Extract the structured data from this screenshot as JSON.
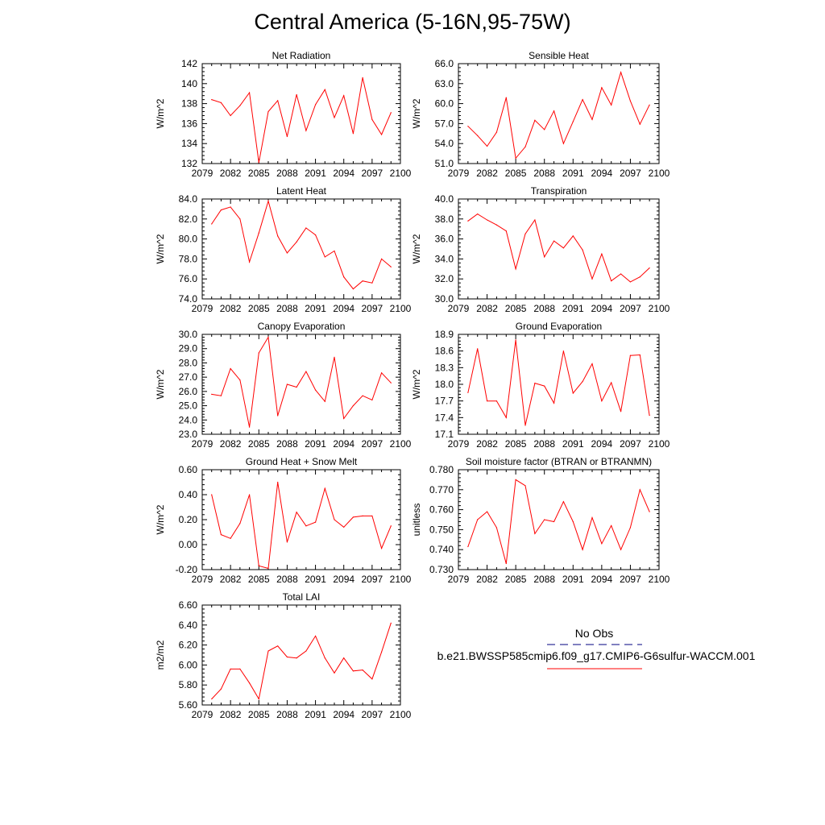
{
  "title": "Central America (5-16N,95-75W)",
  "colors": {
    "model_line": "#ff0000",
    "obs_line": "#000080",
    "axis": "#000000"
  },
  "legend": {
    "obs_label": "No Obs",
    "model_label": "b.e21.BWSSP585cmip6.f09_g17.CMIP6-G6sulfur-WACCM.001"
  },
  "chart_data": [
    {
      "type": "line",
      "title": "Net Radiation",
      "ylabel": "W/m^2",
      "xlim": [
        2079,
        2100
      ],
      "xticks": [
        "2079",
        "2082",
        "2085",
        "2088",
        "2091",
        "2094",
        "2097",
        "2100"
      ],
      "ylim": [
        132,
        142
      ],
      "yticks": [
        "132",
        "134",
        "136",
        "138",
        "140",
        "142"
      ],
      "series": [
        {
          "x": [
            2080,
            2081,
            2082,
            2083,
            2084,
            2085,
            2086,
            2087,
            2088,
            2089,
            2090,
            2091,
            2092,
            2093,
            2094,
            2095,
            2096,
            2097,
            2098,
            2099
          ],
          "values": [
            138.4,
            138.1,
            136.8,
            137.8,
            139.1,
            132.1,
            137.2,
            138.3,
            134.7,
            138.9,
            135.3,
            137.9,
            139.4,
            136.6,
            138.8,
            135.0,
            140.6,
            136.4,
            134.9,
            137.1
          ]
        }
      ]
    },
    {
      "type": "line",
      "title": "Sensible Heat",
      "ylabel": "W/m^2",
      "xlim": [
        2079,
        2100
      ],
      "xticks": [
        "2079",
        "2082",
        "2085",
        "2088",
        "2091",
        "2094",
        "2097",
        "2100"
      ],
      "ylim": [
        51,
        66
      ],
      "yticks": [
        "51.0",
        "54.0",
        "57.0",
        "60.0",
        "63.0",
        "66.0"
      ],
      "series": [
        {
          "x": [
            2080,
            2081,
            2082,
            2083,
            2084,
            2085,
            2086,
            2087,
            2088,
            2089,
            2090,
            2091,
            2092,
            2093,
            2094,
            2095,
            2096,
            2097,
            2098,
            2099
          ],
          "values": [
            56.6,
            55.2,
            53.6,
            55.7,
            60.9,
            51.8,
            53.5,
            57.5,
            56.1,
            58.9,
            54.0,
            57.3,
            60.6,
            57.6,
            62.4,
            59.8,
            64.7,
            60.4,
            56.9,
            59.8
          ]
        }
      ]
    },
    {
      "type": "line",
      "title": "Latent Heat",
      "ylabel": "W/m^2",
      "xlim": [
        2079,
        2100
      ],
      "xticks": [
        "2079",
        "2082",
        "2085",
        "2088",
        "2091",
        "2094",
        "2097",
        "2100"
      ],
      "ylim": [
        74,
        84
      ],
      "yticks": [
        "74.0",
        "76.0",
        "78.0",
        "80.0",
        "82.0",
        "84.0"
      ],
      "series": [
        {
          "x": [
            2080,
            2081,
            2082,
            2083,
            2084,
            2085,
            2086,
            2087,
            2088,
            2089,
            2090,
            2091,
            2092,
            2093,
            2094,
            2095,
            2096,
            2097,
            2098,
            2099
          ],
          "values": [
            81.5,
            82.9,
            83.2,
            82.0,
            77.7,
            80.6,
            83.8,
            80.3,
            78.6,
            79.7,
            81.1,
            80.4,
            78.2,
            78.8,
            76.2,
            75.0,
            75.8,
            75.6,
            78.0,
            77.2
          ]
        }
      ]
    },
    {
      "type": "line",
      "title": "Transpiration",
      "ylabel": "W/m^2",
      "xlim": [
        2079,
        2100
      ],
      "xticks": [
        "2079",
        "2082",
        "2085",
        "2088",
        "2091",
        "2094",
        "2097",
        "2100"
      ],
      "ylim": [
        30,
        40
      ],
      "yticks": [
        "30.0",
        "32.0",
        "34.0",
        "36.0",
        "38.0",
        "40.0"
      ],
      "series": [
        {
          "x": [
            2080,
            2081,
            2082,
            2083,
            2084,
            2085,
            2086,
            2087,
            2088,
            2089,
            2090,
            2091,
            2092,
            2093,
            2094,
            2095,
            2096,
            2097,
            2098,
            2099
          ],
          "values": [
            37.8,
            38.5,
            37.9,
            37.4,
            36.8,
            33.0,
            36.5,
            37.9,
            34.2,
            35.8,
            35.1,
            36.3,
            34.9,
            32.0,
            34.5,
            31.8,
            32.5,
            31.7,
            32.2,
            33.1
          ]
        }
      ]
    },
    {
      "type": "line",
      "title": "Canopy Evaporation",
      "ylabel": "W/m^2",
      "xlim": [
        2079,
        2100
      ],
      "xticks": [
        "2079",
        "2082",
        "2085",
        "2088",
        "2091",
        "2094",
        "2097",
        "2100"
      ],
      "ylim": [
        23,
        30
      ],
      "yticks": [
        "23.0",
        "24.0",
        "25.0",
        "26.0",
        "27.0",
        "28.0",
        "29.0",
        "30.0"
      ],
      "series": [
        {
          "x": [
            2080,
            2081,
            2082,
            2083,
            2084,
            2085,
            2086,
            2087,
            2088,
            2089,
            2090,
            2091,
            2092,
            2093,
            2094,
            2095,
            2096,
            2097,
            2098,
            2099
          ],
          "values": [
            25.8,
            25.7,
            27.6,
            26.8,
            23.5,
            28.7,
            29.8,
            24.3,
            26.5,
            26.3,
            27.4,
            26.1,
            25.3,
            28.4,
            24.1,
            25.0,
            25.7,
            25.4,
            27.3,
            26.6
          ]
        }
      ]
    },
    {
      "type": "line",
      "title": "Ground Evaporation",
      "ylabel": "W/m^2",
      "xlim": [
        2079,
        2100
      ],
      "xticks": [
        "2079",
        "2082",
        "2085",
        "2088",
        "2091",
        "2094",
        "2097",
        "2100"
      ],
      "ylim": [
        17.1,
        18.9
      ],
      "yticks": [
        "17.1",
        "17.4",
        "17.7",
        "18.0",
        "18.3",
        "18.6",
        "18.9"
      ],
      "series": [
        {
          "x": [
            2080,
            2081,
            2082,
            2083,
            2084,
            2085,
            2086,
            2087,
            2088,
            2089,
            2090,
            2091,
            2092,
            2093,
            2094,
            2095,
            2096,
            2097,
            2098,
            2099
          ],
          "values": [
            17.85,
            18.64,
            17.7,
            17.7,
            17.4,
            18.8,
            17.26,
            18.02,
            17.97,
            17.66,
            18.6,
            17.84,
            18.05,
            18.37,
            17.7,
            18.03,
            17.51,
            18.52,
            18.53,
            17.44
          ]
        }
      ]
    },
    {
      "type": "line",
      "title": "Ground Heat + Snow Melt",
      "ylabel": "W/m^2",
      "xlim": [
        2079,
        2100
      ],
      "xticks": [
        "2079",
        "2082",
        "2085",
        "2088",
        "2091",
        "2094",
        "2097",
        "2100"
      ],
      "ylim": [
        -0.2,
        0.6
      ],
      "yticks": [
        "-0.20",
        "0.00",
        "0.20",
        "0.40",
        "0.60"
      ],
      "series": [
        {
          "x": [
            2080,
            2081,
            2082,
            2083,
            2084,
            2085,
            2086,
            2087,
            2088,
            2089,
            2090,
            2091,
            2092,
            2093,
            2094,
            2095,
            2096,
            2097,
            2098,
            2099
          ],
          "values": [
            0.4,
            0.08,
            0.05,
            0.17,
            0.4,
            -0.17,
            -0.19,
            0.5,
            0.02,
            0.26,
            0.15,
            0.18,
            0.45,
            0.2,
            0.14,
            0.22,
            0.23,
            0.23,
            -0.03,
            0.15
          ]
        }
      ]
    },
    {
      "type": "line",
      "title": "Soil moisture factor (BTRAN or BTRANMN)",
      "ylabel": "unitless",
      "xlim": [
        2079,
        2100
      ],
      "xticks": [
        "2079",
        "2082",
        "2085",
        "2088",
        "2091",
        "2094",
        "2097",
        "2100"
      ],
      "ylim": [
        0.73,
        0.78
      ],
      "yticks": [
        "0.730",
        "0.740",
        "0.750",
        "0.760",
        "0.770",
        "0.780"
      ],
      "series": [
        {
          "x": [
            2080,
            2081,
            2082,
            2083,
            2084,
            2085,
            2086,
            2087,
            2088,
            2089,
            2090,
            2091,
            2092,
            2093,
            2094,
            2095,
            2096,
            2097,
            2098,
            2099
          ],
          "values": [
            0.7415,
            0.755,
            0.759,
            0.751,
            0.733,
            0.775,
            0.772,
            0.748,
            0.755,
            0.754,
            0.764,
            0.754,
            0.74,
            0.756,
            0.743,
            0.752,
            0.74,
            0.751,
            0.77,
            0.759
          ]
        }
      ]
    },
    {
      "type": "line",
      "title": "Total LAI",
      "ylabel": "m2/m2",
      "xlim": [
        2079,
        2100
      ],
      "xticks": [
        "2079",
        "2082",
        "2085",
        "2088",
        "2091",
        "2094",
        "2097",
        "2100"
      ],
      "ylim": [
        5.6,
        6.6
      ],
      "yticks": [
        "5.60",
        "5.80",
        "6.00",
        "6.20",
        "6.40",
        "6.60"
      ],
      "series": [
        {
          "x": [
            2080,
            2081,
            2082,
            2083,
            2084,
            2085,
            2086,
            2087,
            2088,
            2089,
            2090,
            2091,
            2092,
            2093,
            2094,
            2095,
            2096,
            2097,
            2098,
            2099
          ],
          "values": [
            5.66,
            5.76,
            5.96,
            5.96,
            5.82,
            5.66,
            6.14,
            6.19,
            6.08,
            6.07,
            6.14,
            6.29,
            6.07,
            5.92,
            6.07,
            5.94,
            5.95,
            5.86,
            6.13,
            6.42
          ]
        }
      ]
    }
  ]
}
